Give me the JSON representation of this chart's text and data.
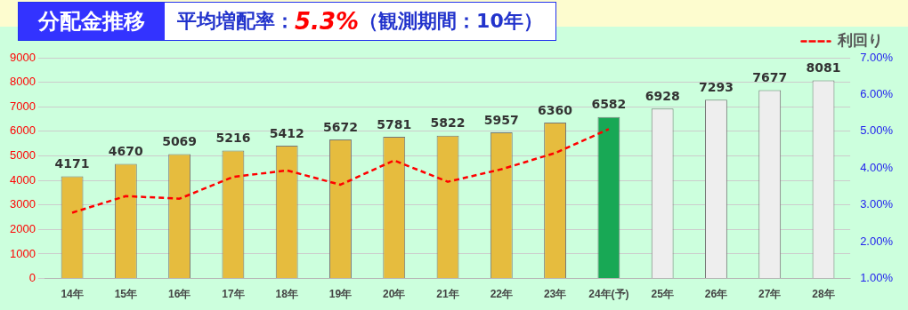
{
  "chart_data": {
    "type": "bar",
    "title": "分配金推移",
    "subtitle": "平均増配率：5.3%（観測期間：10年）",
    "categories": [
      "14年",
      "15年",
      "16年",
      "17年",
      "18年",
      "19年",
      "20年",
      "21年",
      "22年",
      "23年",
      "24年(予)",
      "25年",
      "26年",
      "27年",
      "28年"
    ],
    "series": [
      {
        "colors": [
          "#e6bc3e",
          "#e6bc3e",
          "#e6bc3e",
          "#e6bc3e",
          "#e6bc3e",
          "#e6bc3e",
          "#e6bc3e",
          "#e6bc3e",
          "#e6bc3e",
          "#e6bc3e",
          "#18a855",
          "#eeeeee",
          "#eeeeee",
          "#eeeeee",
          "#eeeeee"
        ],
        "values": [
          4171,
          4670,
          5069,
          5216,
          5412,
          5672,
          5781,
          5822,
          5957,
          6360,
          6582,
          6928,
          7293,
          7677,
          8081
        ],
        "value_labels": [
          "4171",
          "4670",
          "5069",
          "5216",
          "5412",
          "5672",
          "5781",
          "5822",
          "5957",
          "6360",
          "6582",
          "6928",
          "7293",
          "7677",
          "8081"
        ]
      },
      {
        "type": "line",
        "name": "利回り",
        "color": "#ff0000",
        "axis": "y2",
        "line_style": "dashed",
        "marker": "none",
        "values": [
          2.79,
          3.24,
          3.17,
          3.76,
          3.94,
          3.55,
          4.21,
          3.63,
          3.97,
          4.41,
          5.06,
          null,
          null,
          null,
          null
        ]
      }
    ],
    "ylim": [
      0,
      9000
    ],
    "yticks": [
      0,
      1000,
      2000,
      3000,
      4000,
      5000,
      6000,
      7000,
      8000,
      9000
    ],
    "y2lim": [
      1,
      7
    ],
    "y2ticks": [
      {
        "value": 1,
        "label": "1.00%"
      },
      {
        "value": 2,
        "label": "2.00%"
      },
      {
        "value": 3,
        "label": "3.00%"
      },
      {
        "value": 4,
        "label": "4.00%"
      },
      {
        "value": 5,
        "label": "5.00%"
      },
      {
        "value": 6,
        "label": "6.00%"
      },
      {
        "value": 7,
        "label": "7.00%"
      }
    ],
    "grid": "y",
    "legend": "top right"
  }
}
